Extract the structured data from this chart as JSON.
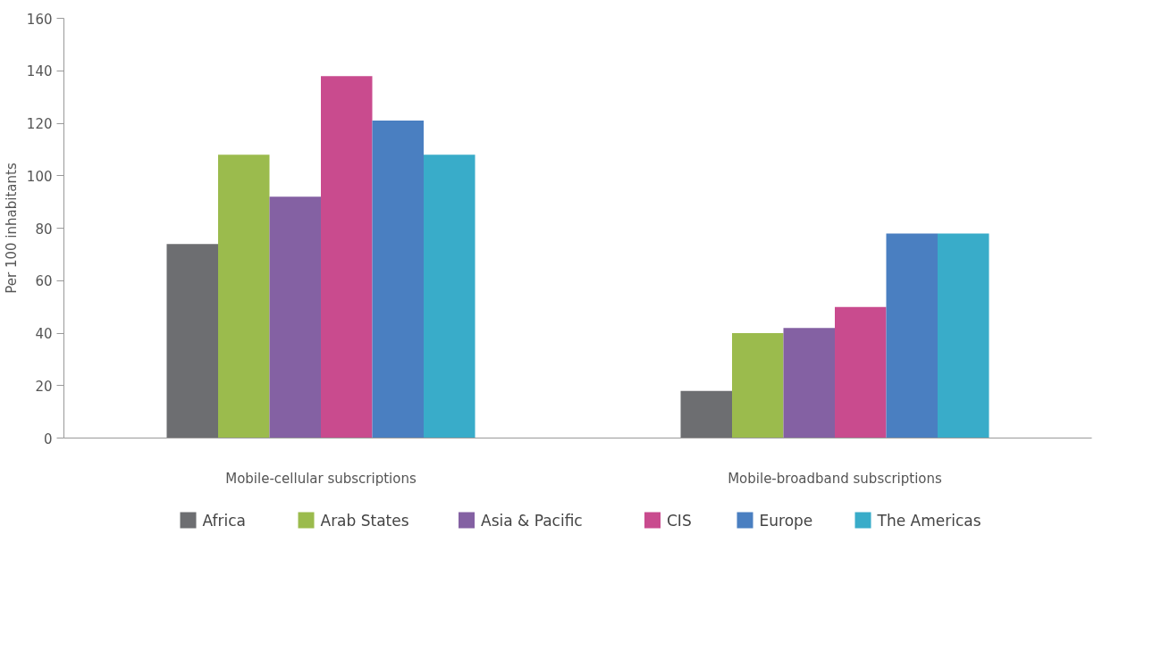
{
  "chart_data": {
    "type": "bar",
    "ylabel": "Per 100 inhabitants",
    "categories": [
      "Mobile-cellular subscriptions",
      "Mobile-broadband subscriptions"
    ],
    "series": [
      {
        "name": "Africa",
        "color": "#6d6e71",
        "values": [
          74,
          18
        ]
      },
      {
        "name": "Arab States",
        "color": "#9bbb4d",
        "values": [
          108,
          40
        ]
      },
      {
        "name": "Asia & Pacific",
        "color": "#8461a3",
        "values": [
          92,
          42
        ]
      },
      {
        "name": "CIS",
        "color": "#c94b8e",
        "values": [
          138,
          50
        ]
      },
      {
        "name": "Europe",
        "color": "#4a7fc1",
        "values": [
          121,
          78
        ]
      },
      {
        "name": "The Americas",
        "color": "#39acc9",
        "values": [
          108,
          78
        ]
      }
    ],
    "ylim": [
      0,
      160
    ],
    "yticks": [
      0,
      20,
      40,
      60,
      80,
      100,
      120,
      140,
      160
    ],
    "grid": false,
    "legend": "bottom"
  }
}
